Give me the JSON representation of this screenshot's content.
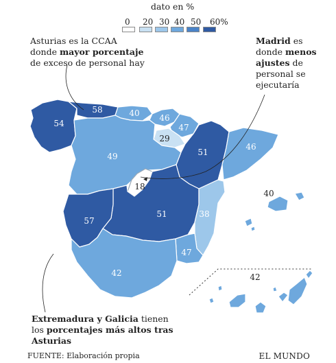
{
  "legend": {
    "title": "dato en %",
    "ticks": [
      "0",
      "20",
      "30",
      "40",
      "50",
      "60%"
    ],
    "colors": [
      "#ffffff",
      "#c9e1f3",
      "#9dc7ea",
      "#6ea8dd",
      "#4a83c8",
      "#2f5aa3"
    ]
  },
  "annotations": {
    "asturias": {
      "line1": "Asturias es la CCAA",
      "line2_a": "donde ",
      "line2_b": "mayor porcentaje",
      "line3": "de exceso de personal hay"
    },
    "madrid": {
      "line1_a": "Madrid",
      "line1_b": " es",
      "line2_a": "donde ",
      "line2_b": "menos",
      "line3_a": "ajustes",
      "line3_b": " de",
      "line4": "personal se",
      "line5": "ejecutaría"
    },
    "extremadura": {
      "line1_a": "Extremadura y Galicia",
      "line1_b": " tienen",
      "line2_a": "los ",
      "line2_b": "porcentajes  más altos tras",
      "line3": "Asturias"
    }
  },
  "regions": [
    {
      "id": "galicia",
      "label": "54",
      "value": 54,
      "color": "#2f5aa3"
    },
    {
      "id": "asturias",
      "label": "58",
      "value": 58,
      "color": "#2f5aa3"
    },
    {
      "id": "cantabria",
      "label": "40",
      "value": 40,
      "color": "#6ea8dd"
    },
    {
      "id": "pais-vasco",
      "label": "46",
      "value": 46,
      "color": "#6ea8dd"
    },
    {
      "id": "navarra",
      "label": "47",
      "value": 47,
      "color": "#6ea8dd"
    },
    {
      "id": "la-rioja",
      "label": "29",
      "value": 29,
      "color": "#c9e1f3"
    },
    {
      "id": "aragon",
      "label": "51",
      "value": 51,
      "color": "#2f5aa3"
    },
    {
      "id": "cataluna",
      "label": "46",
      "value": 46,
      "color": "#6ea8dd"
    },
    {
      "id": "castilla-y-leon",
      "label": "49",
      "value": 49,
      "color": "#6ea8dd"
    },
    {
      "id": "madrid",
      "label": "18",
      "value": 18,
      "color": "#ffffff"
    },
    {
      "id": "castilla-la-mancha",
      "label": "51",
      "value": 51,
      "color": "#2f5aa3"
    },
    {
      "id": "comunidad-valenciana",
      "label": "38",
      "value": 38,
      "color": "#9dc7ea"
    },
    {
      "id": "extremadura",
      "label": "57",
      "value": 57,
      "color": "#2f5aa3"
    },
    {
      "id": "murcia",
      "label": "47",
      "value": 47,
      "color": "#6ea8dd"
    },
    {
      "id": "andalucia",
      "label": "42",
      "value": 42,
      "color": "#6ea8dd"
    },
    {
      "id": "baleares",
      "label": "40",
      "value": 40,
      "color": "#6ea8dd"
    },
    {
      "id": "canarias",
      "label": "42",
      "value": 42,
      "color": "#6ea8dd"
    }
  ],
  "footer": {
    "source": "FUENTE: Elaboración propia",
    "brand": "EL MUNDO"
  }
}
